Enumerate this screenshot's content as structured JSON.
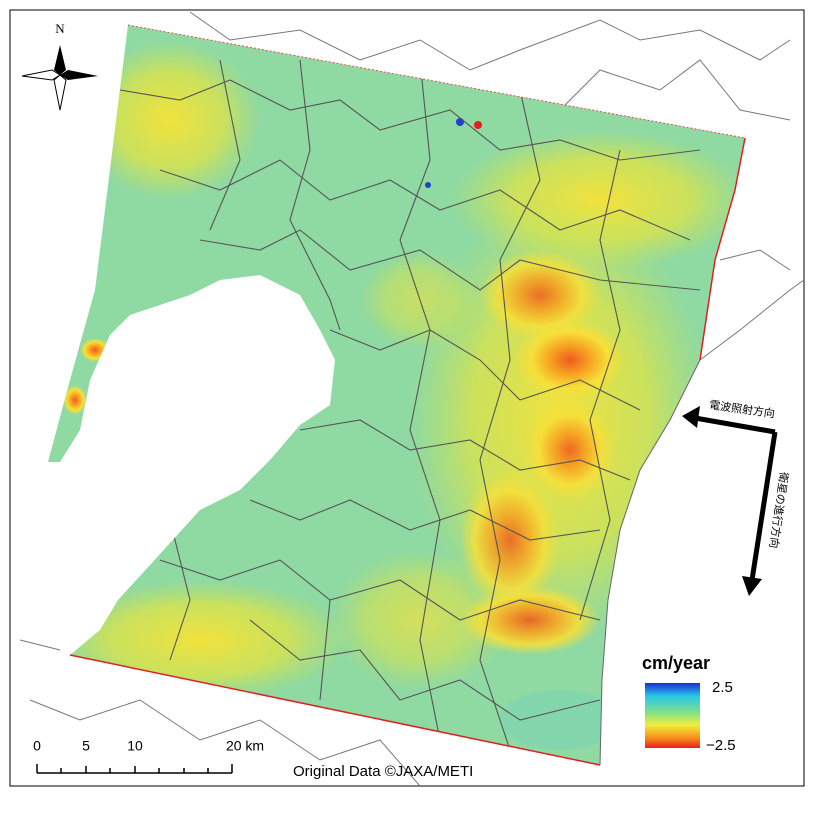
{
  "map": {
    "north": "N",
    "radar_direction": "電波照射方向",
    "satellite_direction": "衛星の進行方向",
    "legend": {
      "unit": "cm/year",
      "max": "2.5",
      "min": "−2.5"
    },
    "scale": {
      "labels": [
        "0",
        "5",
        "10",
        "20 km"
      ]
    },
    "credit": "Original Data ©JAXA/METI"
  }
}
